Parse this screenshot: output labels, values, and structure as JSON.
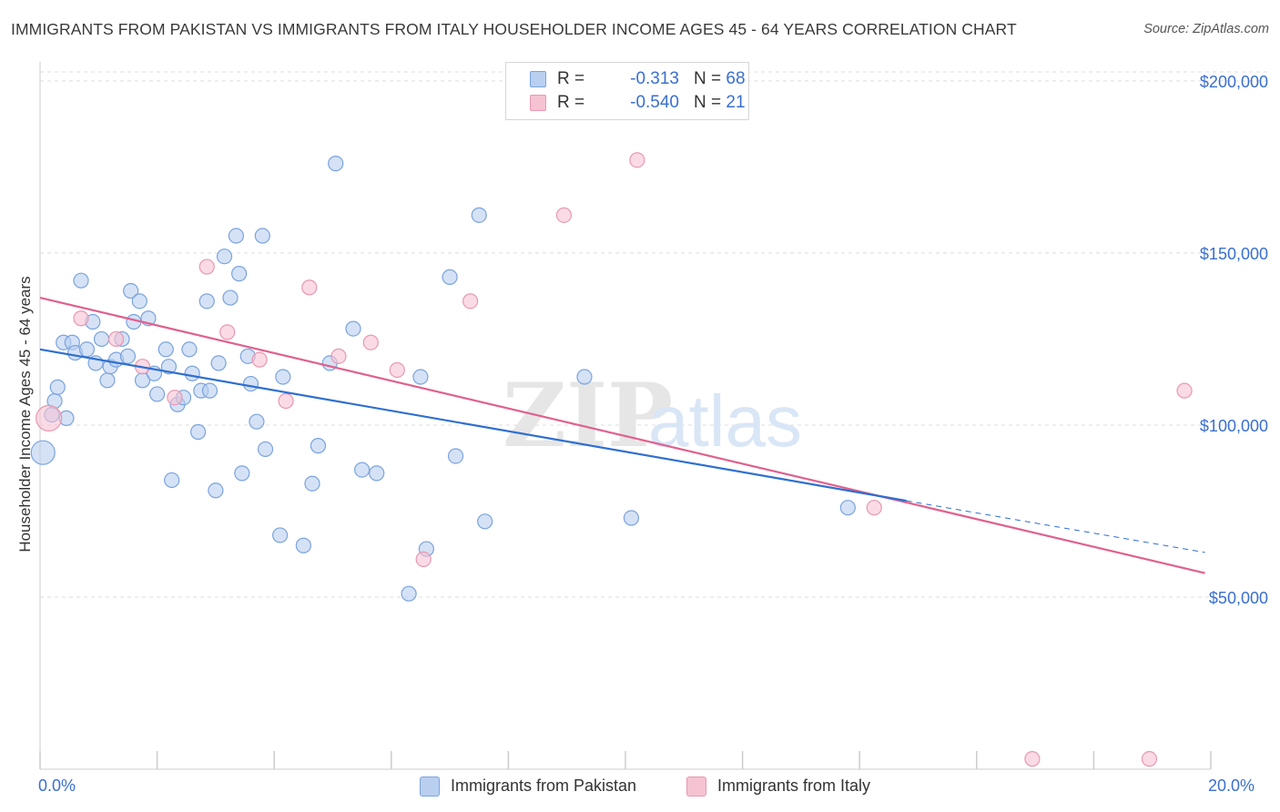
{
  "title": "IMMIGRANTS FROM PAKISTAN VS IMMIGRANTS FROM ITALY HOUSEHOLDER INCOME AGES 45 - 64 YEARS CORRELATION CHART",
  "source": "Source: ZipAtlas.com",
  "watermark": {
    "zip": "ZIP",
    "atlas": "atlas"
  },
  "legend": {
    "rows": [
      {
        "r_label": "R =",
        "r_value": "-0.313",
        "n_label": "N =",
        "n_value": "68"
      },
      {
        "r_label": "R =",
        "r_value": "-0.540",
        "n_label": "N =",
        "n_value": "21"
      }
    ]
  },
  "bottom_legend": [
    "Immigrants from Pakistan",
    "Immigrants from Italy"
  ],
  "colors": {
    "blue_fill": "#b9cff0",
    "blue_stroke": "#7aa3dd",
    "blue_line": "#2f6fd0",
    "pink_fill": "#f6c3d3",
    "pink_stroke": "#e898b1",
    "pink_line": "#e0608e",
    "tick_text": "#3a6fd0",
    "grid": "#dddddd"
  },
  "chart_data": {
    "type": "scatter",
    "title": "IMMIGRANTS FROM PAKISTAN VS IMMIGRANTS FROM ITALY HOUSEHOLDER INCOME AGES 45 - 64 YEARS CORRELATION CHART",
    "xlabel": "",
    "ylabel": "Householder Income Ages 45 - 64 years",
    "xlim": [
      0,
      20
    ],
    "ylim": [
      0,
      205000
    ],
    "x_tick_labels": [
      "0.0%",
      "20.0%"
    ],
    "y_ticks": [
      50000,
      100000,
      150000,
      200000
    ],
    "y_tick_labels": [
      "$50,000",
      "$100,000",
      "$150,000",
      "$200,000"
    ],
    "grid": true,
    "legend_placement": "top-center",
    "series": [
      {
        "name": "Immigrants from Pakistan",
        "points": [
          [
            0.05,
            92000
          ],
          [
            0.2,
            103000
          ],
          [
            0.25,
            107000
          ],
          [
            0.3,
            111000
          ],
          [
            0.45,
            102000
          ],
          [
            0.4,
            124000
          ],
          [
            0.55,
            124000
          ],
          [
            0.6,
            121000
          ],
          [
            0.7,
            142000
          ],
          [
            0.8,
            122000
          ],
          [
            0.9,
            130000
          ],
          [
            0.95,
            118000
          ],
          [
            1.05,
            125000
          ],
          [
            1.15,
            113000
          ],
          [
            1.2,
            117000
          ],
          [
            1.3,
            119000
          ],
          [
            1.4,
            125000
          ],
          [
            1.5,
            120000
          ],
          [
            1.55,
            139000
          ],
          [
            1.6,
            130000
          ],
          [
            1.7,
            136000
          ],
          [
            1.75,
            113000
          ],
          [
            1.85,
            131000
          ],
          [
            1.95,
            115000
          ],
          [
            2.0,
            109000
          ],
          [
            2.15,
            122000
          ],
          [
            2.2,
            117000
          ],
          [
            2.25,
            84000
          ],
          [
            2.35,
            106000
          ],
          [
            2.45,
            108000
          ],
          [
            2.55,
            122000
          ],
          [
            2.6,
            115000
          ],
          [
            2.7,
            98000
          ],
          [
            2.75,
            110000
          ],
          [
            2.85,
            136000
          ],
          [
            2.9,
            110000
          ],
          [
            3.0,
            81000
          ],
          [
            3.05,
            118000
          ],
          [
            3.15,
            149000
          ],
          [
            3.25,
            137000
          ],
          [
            3.35,
            155000
          ],
          [
            3.4,
            144000
          ],
          [
            3.45,
            86000
          ],
          [
            3.55,
            120000
          ],
          [
            3.6,
            112000
          ],
          [
            3.7,
            101000
          ],
          [
            3.8,
            155000
          ],
          [
            3.85,
            93000
          ],
          [
            4.1,
            68000
          ],
          [
            4.15,
            114000
          ],
          [
            4.5,
            65000
          ],
          [
            4.65,
            83000
          ],
          [
            4.75,
            94000
          ],
          [
            4.95,
            118000
          ],
          [
            5.05,
            176000
          ],
          [
            5.35,
            128000
          ],
          [
            5.5,
            87000
          ],
          [
            5.75,
            86000
          ],
          [
            6.3,
            51000
          ],
          [
            6.5,
            114000
          ],
          [
            6.6,
            64000
          ],
          [
            7.0,
            143000
          ],
          [
            7.1,
            91000
          ],
          [
            7.5,
            161000
          ],
          [
            7.6,
            72000
          ],
          [
            9.3,
            114000
          ],
          [
            10.1,
            73000
          ],
          [
            13.8,
            76000
          ]
        ],
        "trend": {
          "x": [
            0,
            14.8
          ],
          "y": [
            122000,
            78000
          ]
        },
        "trend_extension": {
          "x": [
            14.8,
            19.9
          ],
          "y": [
            78000,
            63000
          ]
        }
      },
      {
        "name": "Immigrants from Italy",
        "points": [
          [
            0.15,
            102000
          ],
          [
            0.7,
            131000
          ],
          [
            1.3,
            125000
          ],
          [
            1.75,
            117000
          ],
          [
            2.3,
            108000
          ],
          [
            2.85,
            146000
          ],
          [
            3.2,
            127000
          ],
          [
            3.75,
            119000
          ],
          [
            4.2,
            107000
          ],
          [
            4.6,
            140000
          ],
          [
            5.1,
            120000
          ],
          [
            5.65,
            124000
          ],
          [
            6.1,
            116000
          ],
          [
            6.55,
            61000
          ],
          [
            7.35,
            136000
          ],
          [
            8.95,
            161000
          ],
          [
            10.2,
            177000
          ],
          [
            14.25,
            76000
          ],
          [
            16.95,
            3000
          ],
          [
            18.95,
            3000
          ],
          [
            19.55,
            110000
          ]
        ],
        "trend": {
          "x": [
            0,
            19.9
          ],
          "y": [
            137000,
            57000
          ]
        }
      }
    ]
  }
}
